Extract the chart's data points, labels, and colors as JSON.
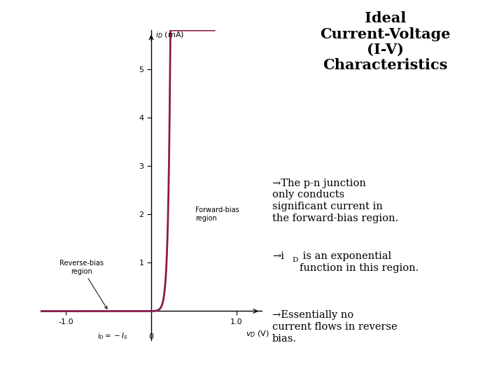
{
  "title": "Ideal\nCurrent-Voltage\n(I-V)\nCharacteristics",
  "bullet1": "→The p-n junction\nonly conducts\nsignificant current in\nthe forward-bias region.",
  "bullet2_pre": "→i",
  "bullet2_sub": "D",
  "bullet2_post": " is an exponential\nfunction in this region.",
  "bullet3": "→Essentially no\ncurrent flows in reverse\nbias.",
  "xlim": [
    -1.3,
    1.3
  ],
  "ylim": [
    -0.6,
    5.8
  ],
  "xticks": [
    -1.0,
    1.0
  ],
  "yticks": [
    1,
    2,
    3,
    4,
    5
  ],
  "curve_color": "#8B1A4A",
  "background_color": "#ffffff",
  "maroon_bar": "#7B0D2A",
  "gray_bar": "#A0A0A0",
  "Is_mA": 0.001,
  "VT": 0.026,
  "forward_bias_label": "Forward-bias\nregion",
  "reverse_bias_label": "Reverse-bias\nregion",
  "iD_eq_label": "$i_D = -I_S$",
  "ylabel_text": "$i_D$ (mA)",
  "xlabel_text": "$v_D$ (V)"
}
